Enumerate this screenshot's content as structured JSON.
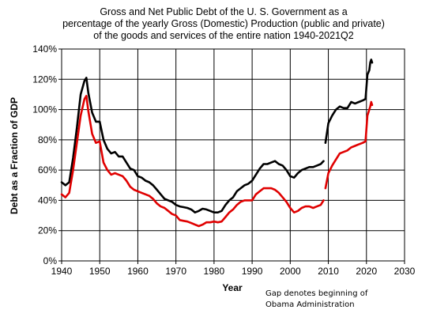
{
  "chart_data": {
    "type": "line",
    "title": [
      "Gross and Net Public Debt of the U. S. Government as a",
      "percentage of the yearly Gross (Domestic) Production (public and private)",
      "of the goods and services of the entire nation 1940-2021Q2"
    ],
    "xlabel": "Year",
    "ylabel": "Debt as a Fraction of GDP",
    "xlim": [
      1940,
      2030
    ],
    "ylim": [
      0,
      140
    ],
    "x_ticks": [
      "1940",
      "1950",
      "1960",
      "1970",
      "1980",
      "1990",
      "2000",
      "2010",
      "2020",
      "2030"
    ],
    "y_ticks": [
      "0%",
      "20%",
      "40%",
      "60%",
      "80%",
      "100%",
      "120%",
      "140%"
    ],
    "grid": true,
    "annotation": [
      "Gap denotes beginning of",
      "Obama Administration"
    ],
    "colors": {
      "gross": "#000000",
      "net": "#e00000",
      "grid": "#000000"
    },
    "series": [
      {
        "key": "gross",
        "segments": [
          {
            "x": [
              1940,
              1941,
              1942,
              1943,
              1944,
              1945,
              1946,
              1946.5,
              1947,
              1948,
              1949,
              1950,
              1951,
              1952,
              1953,
              1954,
              1955,
              1956,
              1957,
              1958,
              1959,
              1960,
              1961,
              1962,
              1963,
              1964,
              1965,
              1966,
              1967,
              1968,
              1969,
              1970,
              1971,
              1972,
              1973,
              1974,
              1975,
              1976,
              1977,
              1978,
              1979,
              1980,
              1981,
              1982,
              1983,
              1984,
              1985,
              1986,
              1987,
              1988,
              1989,
              1990,
              1991,
              1992,
              1993,
              1994,
              1995,
              1996,
              1997,
              1998,
              1999,
              2000,
              2001,
              2002,
              2003,
              2004,
              2005,
              2006,
              2007,
              2008,
              2008.75
            ],
            "y": [
              52,
              50,
              52,
              68,
              88,
              110,
              119,
              121,
              111,
              98,
              92,
              92,
              80,
              74,
              71,
              72,
              69,
              69,
              65,
              61,
              60,
              56,
              55,
              53,
              52,
              50,
              47,
              44,
              41,
              40,
              39,
              37,
              36,
              35.5,
              35,
              34,
              32,
              33,
              34.5,
              34,
              33,
              32,
              32,
              33,
              37,
              40,
              42,
              46,
              48,
              50,
              51,
              53,
              57,
              61,
              64,
              64,
              65,
              66,
              64,
              63,
              60,
              56,
              55,
              58,
              60,
              61,
              62,
              62,
              63,
              64,
              66
            ]
          },
          {
            "x": [
              2009.25,
              2010,
              2011,
              2012,
              2013,
              2014,
              2015,
              2016,
              2017,
              2018,
              2019,
              2019.75,
              2020.25,
              2020.75,
              2021,
              2021.25,
              2021.5
            ],
            "y": [
              78,
              91,
              96,
              100,
              102,
              101,
              101,
              105,
              104,
              105,
              106,
              107,
              123,
              126,
              131,
              133,
              131
            ]
          }
        ]
      },
      {
        "key": "net",
        "segments": [
          {
            "x": [
              1940,
              1941,
              1942,
              1943,
              1944,
              1945,
              1946,
              1946.5,
              1947,
              1948,
              1949,
              1950,
              1951,
              1952,
              1953,
              1954,
              1955,
              1956,
              1957,
              1958,
              1959,
              1960,
              1961,
              1962,
              1963,
              1964,
              1965,
              1966,
              1967,
              1968,
              1969,
              1970,
              1971,
              1972,
              1973,
              1974,
              1975,
              1976,
              1977,
              1978,
              1979,
              1980,
              1981,
              1982,
              1983,
              1984,
              1985,
              1986,
              1987,
              1988,
              1989,
              1990,
              1991,
              1992,
              1993,
              1994,
              1995,
              1996,
              1997,
              1998,
              1999,
              2000,
              2001,
              2002,
              2003,
              2004,
              2005,
              2006,
              2007,
              2008,
              2008.75
            ],
            "y": [
              44,
              42,
              45,
              60,
              78,
              96,
              107,
              109,
              99,
              84,
              78,
              79,
              65,
              60,
              57,
              58,
              57,
              56,
              53,
              49,
              47,
              46,
              45,
              44,
              43,
              41,
              38,
              36,
              35,
              33,
              31,
              30,
              27,
              26.5,
              26,
              25,
              24,
              23,
              24,
              25.5,
              25.5,
              26,
              25.5,
              26,
              29,
              32,
              34,
              37,
              39,
              40,
              40,
              40,
              44,
              46,
              48,
              48,
              48,
              47,
              45,
              42,
              39,
              35,
              32,
              33,
              35,
              36,
              36,
              35,
              36,
              37,
              40
            ]
          },
          {
            "x": [
              2009.25,
              2010,
              2011,
              2012,
              2013,
              2014,
              2015,
              2016,
              2017,
              2018,
              2019,
              2019.75,
              2020.25,
              2020.75,
              2021,
              2021.25,
              2021.5
            ],
            "y": [
              48,
              58,
              63,
              67,
              71,
              72,
              73,
              75,
              76,
              77,
              78,
              79,
              96,
              100,
              102,
              105,
              103
            ]
          }
        ]
      }
    ]
  }
}
